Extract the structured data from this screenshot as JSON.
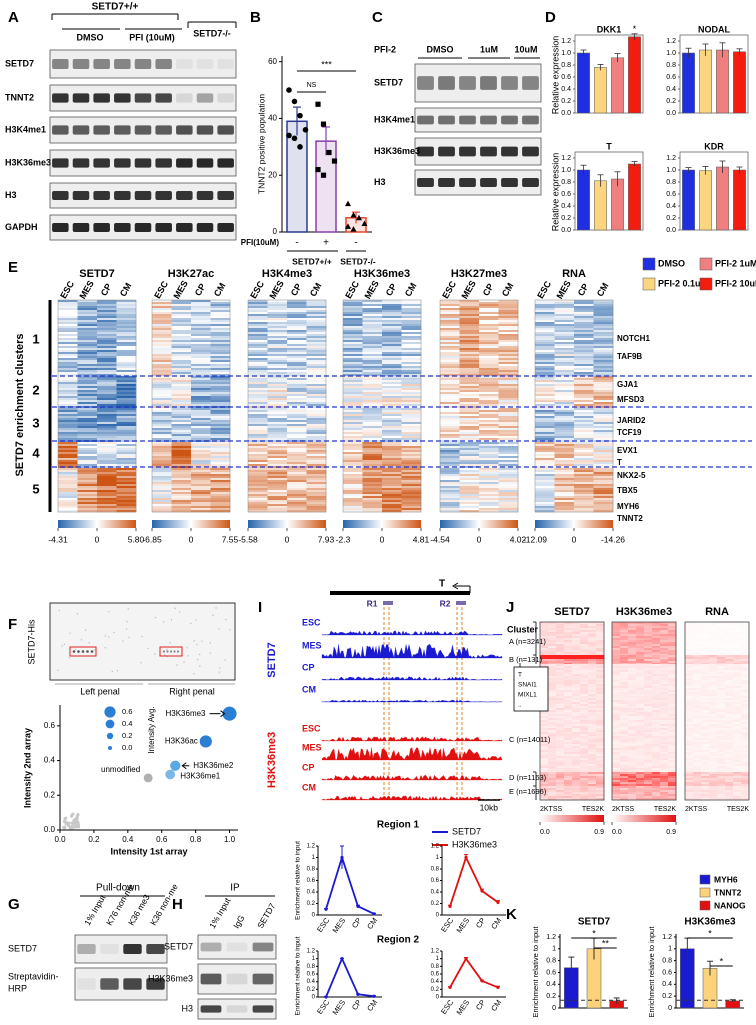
{
  "panel_labels": [
    "A",
    "B",
    "C",
    "D",
    "E",
    "F",
    "G",
    "H",
    "I",
    "J",
    "K"
  ],
  "A": {
    "genotype_wt": "SETD7+/+",
    "conditions": [
      "DMSO",
      "PFI (10uM)"
    ],
    "genotype_ko": "SETD7-/-",
    "rows": [
      "SETD7",
      "TNNT2",
      "H3K4me1",
      "H3K36me3",
      "H3",
      "GAPDH"
    ]
  },
  "B": {
    "type": "bar",
    "ylabel": "TNNT2 positive population",
    "treatment": "PFI(10uM)",
    "categories": [
      "-",
      "+",
      "-"
    ],
    "groups": [
      "SETD7+/+",
      "SETD7-/-"
    ],
    "values": [
      39,
      32,
      5
    ],
    "errors": [
      5,
      5,
      2
    ],
    "colors": [
      "#2b3a8f",
      "#8a3fa8",
      "#e8452a"
    ],
    "points": [
      [
        50,
        46,
        41,
        36,
        34,
        33,
        30
      ],
      [
        45,
        38,
        28,
        25,
        22,
        20
      ],
      [
        10,
        6,
        5,
        3,
        2,
        1
      ]
    ],
    "ylim": [
      0,
      62
    ],
    "yticks": [
      0,
      20,
      40,
      60
    ],
    "annotations": [
      "***",
      "NS"
    ]
  },
  "C": {
    "treatment": "PFI-2",
    "conditions": [
      "DMSO",
      "1uM",
      "10uM"
    ],
    "rows": [
      "SETD7",
      "H3K4me1",
      "H3K36me3",
      "H3"
    ]
  },
  "D": {
    "type": "bar",
    "ylabel": "Relative expression",
    "series": [
      {
        "name": "DMSO",
        "color": "#1f2ee0"
      },
      {
        "name": "PFI-2 0.1uM",
        "color": "#fcd581"
      },
      {
        "name": "PFI-2 1uM",
        "color": "#f08080"
      },
      {
        "name": "PFI-2 10uM",
        "color": "#f21d0e"
      }
    ],
    "charts": [
      {
        "title": "DKK1",
        "values": [
          1.0,
          0.76,
          0.92,
          1.27
        ],
        "errors": [
          0.05,
          0.05,
          0.07,
          0.05
        ],
        "annotation": "*"
      },
      {
        "title": "NODAL",
        "values": [
          1.0,
          1.05,
          1.05,
          1.02
        ],
        "errors": [
          0.08,
          0.1,
          0.12,
          0.05
        ]
      },
      {
        "title": "T",
        "values": [
          1.0,
          0.82,
          0.85,
          1.1
        ],
        "errors": [
          0.08,
          0.1,
          0.12,
          0.04
        ]
      },
      {
        "title": "KDR",
        "values": [
          1.0,
          0.99,
          1.05,
          1.0
        ],
        "errors": [
          0.04,
          0.07,
          0.1,
          0.05
        ]
      }
    ],
    "ylim": [
      0,
      1.3
    ],
    "yticks": [
      {
        "value": 0,
        "label": "0.0"
      },
      0.2,
      0.4,
      0.6,
      0.8,
      {
        "value": 1,
        "label": "1.0"
      },
      1.2
    ]
  },
  "E": {
    "titles": [
      "SETD7",
      "H3K27ac",
      "H3K4me3",
      "H3K36me3",
      "H3K27me3",
      "RNA"
    ],
    "columns": [
      "ESC",
      "MES",
      "CP",
      "CM"
    ],
    "ylabel": "SETD7 enrichment clusters",
    "clusters": [
      "1",
      "2",
      "3",
      "4",
      "5"
    ],
    "genes": [
      "NOTCH1",
      "TAF9B",
      "GJA1",
      "MFSD3",
      "JARID2",
      "TCF19",
      "EVX1",
      "T",
      "NKX2-5",
      "TBX5",
      "MYH6",
      "TNNT2"
    ],
    "colorbars": [
      [
        -4.31,
        0,
        {
          "value": 5.8,
          "label": "5.80"
        }
      ],
      [
        -6.85,
        0,
        7.55
      ],
      [
        -5.58,
        0,
        7.93
      ],
      [
        -2.3,
        0,
        4.81
      ],
      [
        -4.54,
        0,
        4.02
      ],
      [
        -12.09,
        0,
        -14.26
      ]
    ]
  },
  "F": {
    "blot_label": "SETD7-His",
    "panels": [
      "Left penal",
      "Right penal"
    ],
    "type": "scatter",
    "xlabel": "Intensity 1st array",
    "ylabel": "Intensity 2nd array",
    "size_title": "Intensity Avg.",
    "size_legend": [
      0.6,
      0.4,
      0.2,
      {
        "value": 0,
        "label": "0.0"
      }
    ],
    "points": [
      {
        "name": "H3K36me3",
        "x": 1.0,
        "y": 0.67,
        "size": 0.84,
        "color": "#2a7fd4"
      },
      {
        "name": "H3K36ac",
        "x": 0.86,
        "y": 0.51,
        "size": 0.68,
        "color": "#2a7fd4"
      },
      {
        "name": "H3K36me2",
        "x": 0.68,
        "y": 0.37,
        "size": 0.52,
        "color": "#5aa9e6"
      },
      {
        "name": "H3K36me1",
        "x": 0.65,
        "y": 0.32,
        "size": 0.48,
        "color": "#7bb8e8"
      },
      {
        "name": "unmodified",
        "x": 0.52,
        "y": 0.3,
        "size": 0.41,
        "color": "#b0b0b0"
      }
    ],
    "xlim": [
      0,
      1.05
    ],
    "ylim": [
      0,
      0.72
    ],
    "xticks": [
      {
        "value": 0,
        "label": "0.0"
      },
      0.2,
      0.4,
      0.6,
      0.8,
      {
        "value": 1,
        "label": "1.0"
      }
    ],
    "yticks": [
      {
        "value": 0,
        "label": "0.0"
      },
      0.2,
      0.4,
      0.6
    ]
  },
  "G": {
    "title": "Pull-down",
    "lanes": [
      "1% Input",
      "K76 non-me",
      "K36 me3",
      "K36 non-me"
    ],
    "rows": [
      [
        "SETD7"
      ],
      [
        "Streptavidin-",
        "HRP"
      ]
    ]
  },
  "H": {
    "title": "IP",
    "lanes": [
      "1% Input",
      "IgG",
      "SETD7"
    ],
    "rows": [
      "SETD7",
      "H3K36me3",
      "H3"
    ]
  },
  "I": {
    "gene": "T",
    "regions": [
      "R1",
      "R2"
    ],
    "tracks": [
      "SETD7",
      "H3K36me3"
    ],
    "samples": [
      "ESC",
      "MES",
      "CP",
      "CM"
    ],
    "scale": "10kb",
    "type": "line",
    "ylabel": "Enrichment relative to input",
    "categories": [
      "ESC",
      "MES",
      "CP",
      "CM"
    ],
    "series": [
      {
        "name": "SETD7",
        "color": "#1a1ad0"
      },
      {
        "name": "H3K36me3",
        "color": "#e01010"
      }
    ],
    "charts": [
      {
        "title": "Region 1",
        "series": [
          {
            "values": [
              0.1,
              1.0,
              0.15,
              0.02
            ],
            "errors": [
              0.01,
              0.2,
              0.02,
              0.01
            ]
          },
          {
            "values": [
              0.15,
              1.0,
              0.42,
              0.22
            ],
            "errors": [
              0.02,
              0.05,
              0.03,
              0.03
            ]
          }
        ]
      },
      {
        "title": "Region 2",
        "series": [
          {
            "values": [
              0.0,
              1.0,
              0.07,
              0.02
            ],
            "errors": [
              0.01,
              0.01,
              0.01,
              0.01
            ]
          },
          {
            "values": [
              0.25,
              1.0,
              0.42,
              0.25
            ],
            "errors": [
              0.02,
              0.03,
              0.02,
              0.03
            ]
          }
        ]
      }
    ],
    "ylim": [
      0,
      1.2
    ],
    "yticks": [
      0,
      0.2,
      0.4,
      0.6,
      0.8,
      1,
      1.2
    ]
  },
  "J": {
    "titles": [
      "SETD7",
      "H3K36me3",
      "RNA"
    ],
    "cluster_title": "Cluster",
    "clusters": [
      "A (n=3241)",
      "B (n=131)",
      "C (n=14011)",
      "D (n=1163)",
      "E (n=1696)"
    ],
    "genes": [
      "T",
      "SNAI1",
      "MIXL1",
      ".."
    ],
    "x_labels": [
      "2KTSS",
      "TES2K"
    ],
    "colorbar": [
      {
        "value": 0,
        "label": "0.0"
      },
      0.9
    ]
  },
  "K": {
    "type": "bar",
    "ylabel": "Enrichment relative to input",
    "series": [
      {
        "name": "MYH6",
        "color": "#1a1ad0"
      },
      {
        "name": "TNNT2",
        "color": "#fcd37a"
      },
      {
        "name": "NANOG",
        "color": "#e01010"
      }
    ],
    "charts": [
      {
        "title": "SETD7",
        "values": [
          0.68,
          1.0,
          0.12
        ],
        "errors": [
          0.18,
          0.18,
          0.05
        ],
        "annotations": [
          "*",
          "**"
        ]
      },
      {
        "title": "H3K36me3",
        "values": [
          1.0,
          0.67,
          0.12
        ],
        "errors": [
          0.18,
          0.12,
          0.02
        ],
        "annotations": [
          "*",
          "*"
        ]
      }
    ],
    "reference_line": 0.13,
    "ylim": [
      0,
      1.25
    ],
    "yticks": [
      0,
      0.2,
      0.4,
      0.6,
      0.8,
      1,
      1.2
    ]
  }
}
